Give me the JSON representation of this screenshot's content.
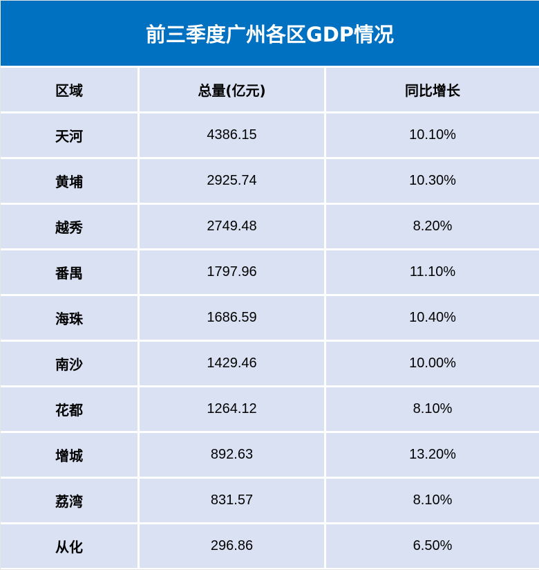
{
  "title": "前三季度广州各区GDP情况",
  "colors": {
    "header_bg": "#0070c0",
    "cell_bg": "#d9e1f2",
    "grid_line": "#ffffff"
  },
  "table": {
    "headers": [
      "区域",
      "总量(亿元)",
      "同比增长"
    ],
    "rows": [
      [
        "天河",
        "4386.15",
        "10.10%"
      ],
      [
        "黄埔",
        "2925.74",
        "10.30%"
      ],
      [
        "越秀",
        "2749.48",
        "8.20%"
      ],
      [
        "番禺",
        "1797.96",
        "11.10%"
      ],
      [
        "海珠",
        "1686.59",
        "10.40%"
      ],
      [
        "南沙",
        "1429.46",
        "10.00%"
      ],
      [
        "花都",
        "1264.12",
        "8.10%"
      ],
      [
        "增城",
        "892.63",
        "13.20%"
      ],
      [
        "荔湾",
        "831.57",
        "8.10%"
      ],
      [
        "从化",
        "296.86",
        "6.50%"
      ]
    ]
  }
}
